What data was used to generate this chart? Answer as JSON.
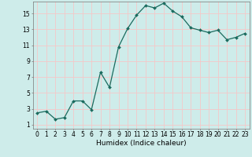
{
  "x": [
    0,
    1,
    2,
    3,
    4,
    5,
    6,
    7,
    8,
    9,
    10,
    11,
    12,
    13,
    14,
    15,
    16,
    17,
    18,
    19,
    20,
    21,
    22,
    23
  ],
  "y": [
    2.5,
    2.7,
    1.7,
    1.9,
    4.0,
    4.0,
    2.9,
    7.6,
    5.7,
    10.8,
    13.1,
    14.8,
    16.0,
    15.7,
    16.3,
    15.3,
    14.6,
    13.2,
    12.9,
    12.6,
    12.9,
    11.7,
    12.0,
    12.5
  ],
  "line_color": "#1a6b5e",
  "marker": "D",
  "marker_size": 2.0,
  "linewidth": 0.9,
  "background_color": "#ceecea",
  "grid_color": "#f5c8c8",
  "xlabel": "Humidex (Indice chaleur)",
  "xlim": [
    -0.5,
    23.5
  ],
  "ylim": [
    0.5,
    16.5
  ],
  "xticks": [
    0,
    1,
    2,
    3,
    4,
    5,
    6,
    7,
    8,
    9,
    10,
    11,
    12,
    13,
    14,
    15,
    16,
    17,
    18,
    19,
    20,
    21,
    22,
    23
  ],
  "yticks": [
    1,
    3,
    5,
    7,
    9,
    11,
    13,
    15
  ],
  "tick_fontsize": 5.5,
  "xlabel_fontsize": 6.5
}
